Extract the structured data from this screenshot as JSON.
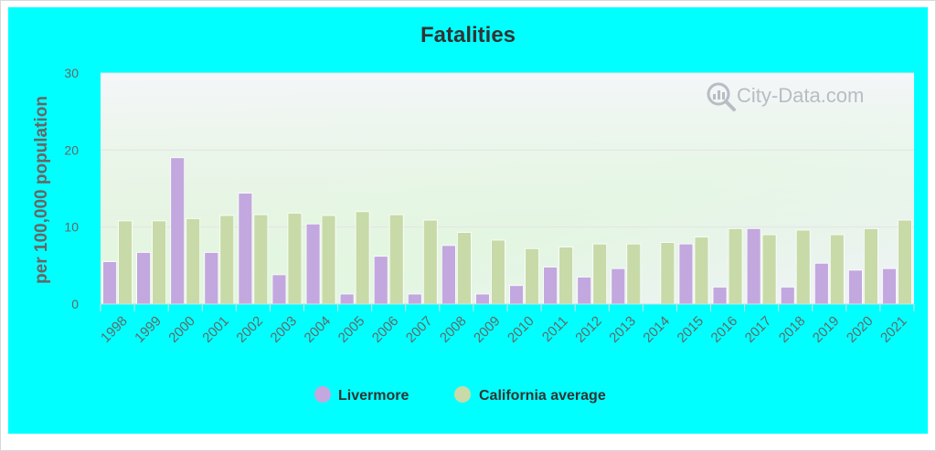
{
  "chart_data": {
    "type": "bar",
    "title": "Fatalities",
    "xlabel": "",
    "ylabel": "per 100,000 population",
    "ylim": [
      0,
      30
    ],
    "yticks": [
      0,
      10,
      20,
      30
    ],
    "grid": true,
    "legend_position": "bottom-center",
    "categories": [
      "1998",
      "1999",
      "2000",
      "2001",
      "2002",
      "2003",
      "2004",
      "2005",
      "2006",
      "2007",
      "2008",
      "2009",
      "2010",
      "2011",
      "2012",
      "2013",
      "2014",
      "2015",
      "2016",
      "2017",
      "2018",
      "2019",
      "2020",
      "2021"
    ],
    "series": [
      {
        "name": "Livermore",
        "color": "#c2a8de",
        "values": [
          5.5,
          6.7,
          19.0,
          6.7,
          14.4,
          3.8,
          10.4,
          1.3,
          6.2,
          1.3,
          7.6,
          1.3,
          2.4,
          4.8,
          3.5,
          4.6,
          0,
          7.8,
          2.2,
          9.8,
          2.2,
          5.3,
          4.4,
          4.6
        ]
      },
      {
        "name": "California average",
        "color": "#c8daa8",
        "values": [
          10.8,
          10.8,
          11.1,
          11.5,
          11.6,
          11.8,
          11.5,
          12.0,
          11.6,
          10.9,
          9.3,
          8.3,
          7.2,
          7.4,
          7.8,
          7.8,
          8.0,
          8.7,
          9.8,
          9.0,
          9.6,
          9.0,
          9.8,
          10.9
        ]
      }
    ]
  },
  "watermark": {
    "text": "City-Data.com",
    "icon": "magnifier-chart-icon"
  }
}
